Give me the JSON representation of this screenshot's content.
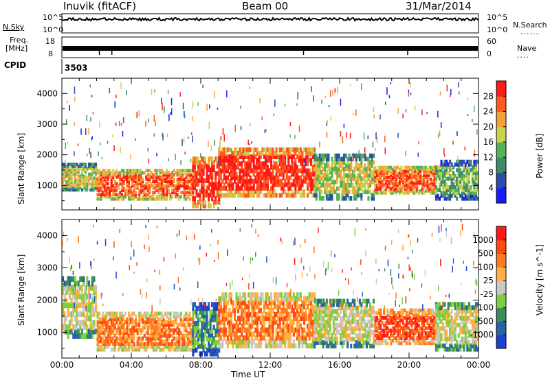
{
  "header": {
    "station": "Inuvik (fitACF)",
    "beam": "Beam 00",
    "date": "31/Mar/2014"
  },
  "top_panels": {
    "nsky_label": "N.Sky",
    "nsky_ticks": [
      "10^5",
      "10^0"
    ],
    "nsearch_label": "N.Search",
    "freq_label_line1": "Freq.",
    "freq_label_line2": "[MHz]",
    "freq_ticks": [
      "18",
      "8"
    ],
    "nave_label": "Nave",
    "nave_ticks": [
      "60",
      "0"
    ],
    "cpid_label": "CPID",
    "cpid_value": "3503"
  },
  "chart_data": [
    {
      "type": "heatmap",
      "title": "Power [dB]",
      "ylabel": "Slant Range [km]",
      "xlabel": "Time UT",
      "x_ticks": [
        "00:00",
        "04:00",
        "08:00",
        "12:00",
        "16:00",
        "20:00",
        "00:00"
      ],
      "y_ticks": [
        1000,
        2000,
        3000,
        4000
      ],
      "ylim": [
        200,
        4500
      ],
      "xlim_hours": [
        0,
        24
      ],
      "colorbar": {
        "label": "Power [dB]",
        "ticks": [
          "28",
          "24",
          "20",
          "16",
          "12",
          "8",
          "4"
        ],
        "colors": [
          "#1a1aff",
          "#2a4ea8",
          "#3f8a6a",
          "#56b256",
          "#c8d24a",
          "#f3a23a",
          "#ff5a1e",
          "#ff1a1a"
        ]
      },
      "echo_bands": [
        {
          "start_hr": 0.0,
          "end_hr": 2.0,
          "range_low_km": 800,
          "range_high_km": 1700,
          "level": 4
        },
        {
          "start_hr": 2.0,
          "end_hr": 7.5,
          "range_low_km": 500,
          "range_high_km": 1500,
          "level": 6
        },
        {
          "start_hr": 7.5,
          "end_hr": 9.0,
          "range_low_km": 250,
          "range_high_km": 1900,
          "level": 7
        },
        {
          "start_hr": 9.0,
          "end_hr": 14.5,
          "range_low_km": 600,
          "range_high_km": 2200,
          "level": 7
        },
        {
          "start_hr": 14.5,
          "end_hr": 18.0,
          "range_low_km": 500,
          "range_high_km": 2000,
          "level": 4
        },
        {
          "start_hr": 18.0,
          "end_hr": 21.5,
          "range_low_km": 700,
          "range_high_km": 1600,
          "level": 6
        },
        {
          "start_hr": 21.5,
          "end_hr": 24.0,
          "range_low_km": 500,
          "range_high_km": 1800,
          "level": 3
        }
      ]
    },
    {
      "type": "heatmap",
      "title": "Velocity [m s^-1]",
      "ylabel": "Slant Range [km]",
      "xlabel": "Time UT",
      "x_ticks": [
        "00:00",
        "04:00",
        "08:00",
        "12:00",
        "16:00",
        "20:00",
        "00:00"
      ],
      "y_ticks": [
        1000,
        2000,
        3000,
        4000
      ],
      "ylim": [
        200,
        4500
      ],
      "xlim_hours": [
        0,
        24
      ],
      "colorbar": {
        "label": "Velocity [m s^-1]",
        "ticks": [
          "1000",
          "500",
          "100",
          "25",
          "-25",
          "-100",
          "-500",
          "-1000"
        ],
        "colors": [
          "#2040d0",
          "#2a62a8",
          "#3a8c5a",
          "#7ccf40",
          "#c8c8c8",
          "#ffb040",
          "#ff7a20",
          "#ff4a10",
          "#ff1a1a"
        ]
      },
      "echo_bands": [
        {
          "start_hr": 0.0,
          "end_hr": 2.0,
          "range_low_km": 800,
          "range_high_km": 2700,
          "level": 4
        },
        {
          "start_hr": 2.0,
          "end_hr": 7.5,
          "range_low_km": 400,
          "range_high_km": 1600,
          "level": 6
        },
        {
          "start_hr": 7.5,
          "end_hr": 9.0,
          "range_low_km": 250,
          "range_high_km": 1900,
          "level": 2
        },
        {
          "start_hr": 9.0,
          "end_hr": 14.5,
          "range_low_km": 500,
          "range_high_km": 2200,
          "level": 6
        },
        {
          "start_hr": 14.5,
          "end_hr": 18.0,
          "range_low_km": 500,
          "range_high_km": 2000,
          "level": 4
        },
        {
          "start_hr": 18.0,
          "end_hr": 21.5,
          "range_low_km": 600,
          "range_high_km": 1700,
          "level": 7
        },
        {
          "start_hr": 21.5,
          "end_hr": 24.0,
          "range_low_km": 400,
          "range_high_km": 1900,
          "level": 4
        }
      ]
    }
  ]
}
